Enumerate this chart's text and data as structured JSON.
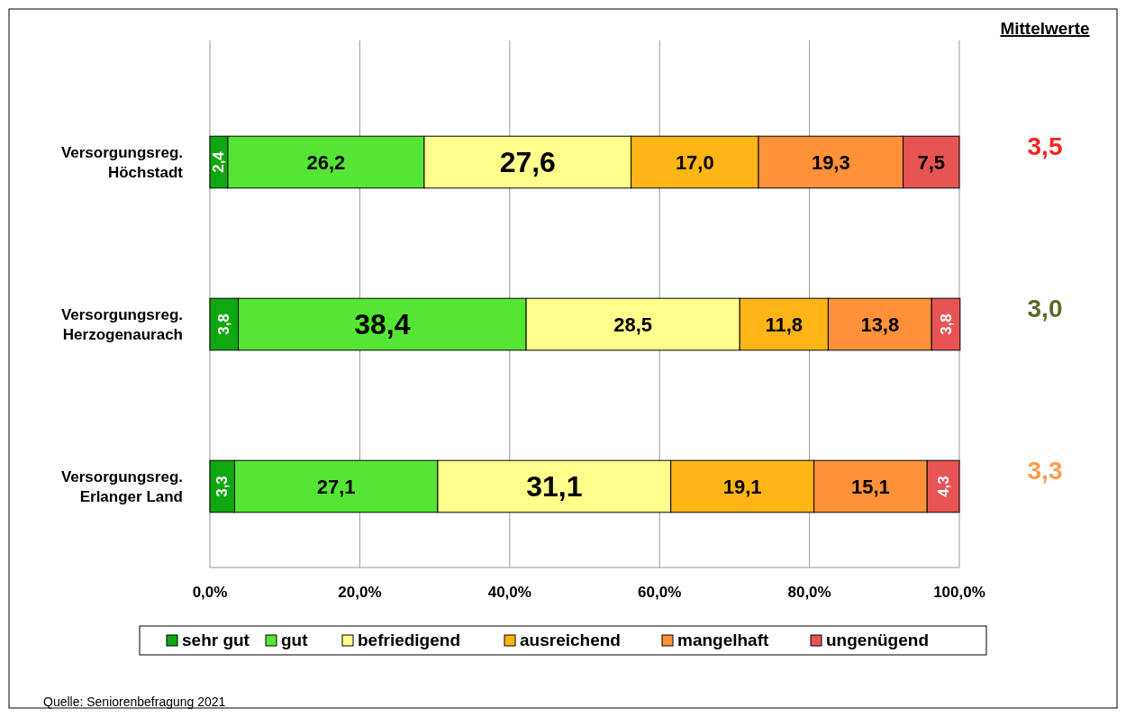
{
  "chart_data": {
    "type": "bar",
    "orientation": "horizontal",
    "stacked": true,
    "categories": [
      "Versorgungsreg.\nHöchstadt",
      "Versorgungsreg.\nHerzogenaurach",
      "Versorgungsreg.\nErlanger Land"
    ],
    "series": [
      {
        "name": "sehr gut",
        "color": "#10a810",
        "values": [
          2.4,
          3.8,
          3.3
        ],
        "value_labels": [
          "2,4",
          "3,8",
          "3,3"
        ]
      },
      {
        "name": "gut",
        "color": "#55e635",
        "values": [
          26.2,
          38.4,
          27.1
        ],
        "value_labels": [
          "26,2",
          "38,4",
          "27,1"
        ]
      },
      {
        "name": "befriedigend",
        "color": "#ffff8c",
        "values": [
          27.6,
          28.5,
          31.1
        ],
        "value_labels": [
          "27,6",
          "28,5",
          "31,1"
        ]
      },
      {
        "name": "ausreichend",
        "color": "#ffb515",
        "values": [
          17.0,
          11.8,
          19.1
        ],
        "value_labels": [
          "17,0",
          "11,8",
          "19,1"
        ]
      },
      {
        "name": "mangelhaft",
        "color": "#ff9138",
        "values": [
          19.3,
          13.8,
          15.1
        ],
        "value_labels": [
          "19,3",
          "13,8",
          "15,1"
        ]
      },
      {
        "name": "ungenügend",
        "color": "#e85454",
        "values": [
          7.5,
          3.8,
          4.3
        ],
        "value_labels": [
          "7,5",
          "3,8",
          "4,3"
        ]
      }
    ],
    "xlim": [
      0,
      100
    ],
    "xticks": [
      {
        "value": 0,
        "label": "0,0%"
      },
      {
        "value": 20,
        "label": "20,0%"
      },
      {
        "value": 40,
        "label": "40,0%"
      },
      {
        "value": 60,
        "label": "60,0%"
      },
      {
        "value": 80,
        "label": "80,0%"
      },
      {
        "value": 100,
        "label": "100,0%"
      }
    ],
    "grid": "x",
    "legend": "bottom",
    "annotations": [
      "Mittelwerte",
      "3,5",
      "3,0",
      "3,3",
      "Quelle: Seniorenbefragung 2021"
    ]
  }
}
